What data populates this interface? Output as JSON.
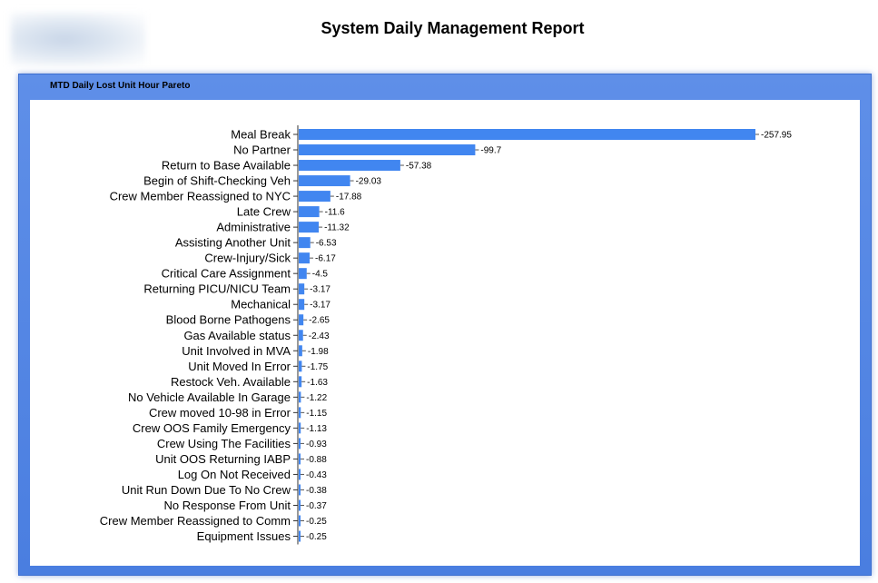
{
  "report_title": "System Daily Management Report",
  "panel_title": "MTD Daily Lost Unit Hour Pareto",
  "colors": {
    "bar": "#4186f0",
    "panel": "#5b8ce6"
  },
  "chart_data": {
    "type": "bar",
    "orientation": "horizontal",
    "title": "",
    "xlabel": "",
    "ylabel": "",
    "categories": [
      "Meal Break",
      "No Partner",
      "Return to Base Available",
      "Begin of Shift-Checking Veh",
      "Crew Member Reassigned to NYC",
      "Late Crew",
      "Administrative",
      "Assisting Another Unit",
      "Crew-Injury/Sick",
      "Critical Care Assignment",
      "Returning PICU/NICU Team",
      "Mechanical",
      "Blood Borne Pathogens",
      "Gas Available status",
      "Unit Involved in MVA",
      "Unit Moved In Error",
      "Restock Veh. Available",
      "No Vehicle Available In Garage",
      "Crew moved 10-98 in Error",
      "Crew OOS Family Emergency",
      "Crew Using The Facilities",
      "Unit OOS Returning IABP",
      "Log On Not Received",
      "Unit Run Down Due To No Crew",
      "No Response From Unit",
      "Crew Member Reassigned to Comm",
      "Equipment Issues"
    ],
    "values": [
      -257.95,
      -99.7,
      -57.38,
      -29.03,
      -17.88,
      -11.6,
      -11.32,
      -6.53,
      -6.17,
      -4.5,
      -3.17,
      -3.17,
      -2.65,
      -2.43,
      -1.98,
      -1.75,
      -1.63,
      -1.22,
      -1.15,
      -1.13,
      -0.93,
      -0.88,
      -0.43,
      -0.38,
      -0.37,
      -0.25,
      -0.25
    ],
    "value_labels": [
      "-257.95",
      "-99.7",
      "-57.38",
      "-29.03",
      "-17.88",
      "-11.6",
      "-11.32",
      "-6.53",
      "-6.17",
      "-4.5",
      "-3.17",
      "-3.17",
      "-2.65",
      "-2.43",
      "-1.98",
      "-1.75",
      "-1.63",
      "-1.22",
      "-1.15",
      "-1.13",
      "-0.93",
      "-0.88",
      "-0.43",
      "-0.38",
      "-0.37",
      "-0.25",
      "-0.25"
    ],
    "grid": false,
    "legend": "none"
  }
}
